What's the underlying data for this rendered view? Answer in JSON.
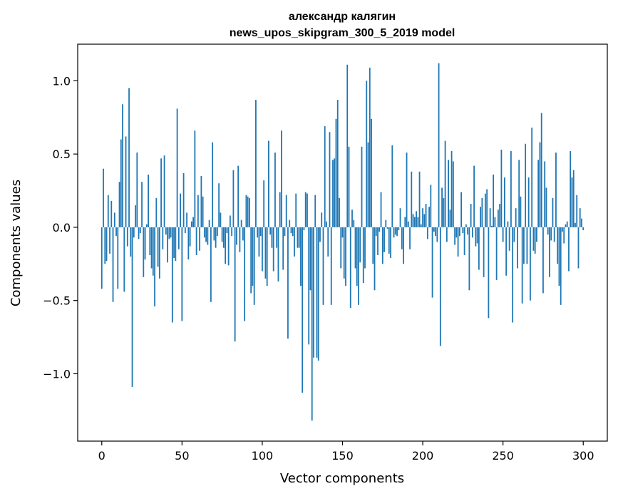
{
  "chart_data": {
    "type": "bar",
    "title_line1": "александр калягин",
    "title_line2": "news_upos_skipgram_300_5_2019 model",
    "xlabel": "Vector components",
    "ylabel": "Components values",
    "xlim": [
      -15,
      315
    ],
    "ylim": [
      -1.46,
      1.25
    ],
    "xticks": [
      0,
      50,
      100,
      150,
      200,
      250,
      300
    ],
    "xtick_labels": [
      "0",
      "50",
      "100",
      "150",
      "200",
      "250",
      "300"
    ],
    "yticks": [
      -1.0,
      -0.5,
      0.0,
      0.5,
      1.0
    ],
    "ytick_labels": [
      "−1.0",
      "−0.5",
      "0.0",
      "0.5",
      "1.0"
    ],
    "bar_color": "#1f77b4",
    "grid": false,
    "values": [
      -0.42,
      0.4,
      -0.25,
      -0.23,
      0.22,
      -0.18,
      0.18,
      -0.51,
      0.1,
      -0.06,
      -0.42,
      0.31,
      0.6,
      0.84,
      -0.44,
      0.62,
      -0.13,
      0.95,
      -0.2,
      -1.09,
      -0.07,
      0.15,
      0.51,
      -0.08,
      -0.04,
      0.31,
      -0.34,
      -0.22,
      0.02,
      0.36,
      -0.19,
      -0.28,
      -0.33,
      -0.54,
      0.2,
      -0.27,
      -0.35,
      0.47,
      -0.15,
      0.49,
      -0.05,
      -0.24,
      -0.08,
      -0.07,
      -0.65,
      -0.21,
      -0.23,
      0.81,
      -0.15,
      0.23,
      -0.64,
      0.37,
      -0.04,
      0.1,
      -0.22,
      -0.13,
      0.04,
      0.07,
      0.66,
      -0.19,
      0.22,
      -0.16,
      0.35,
      0.21,
      -0.07,
      -0.1,
      -0.12,
      0.05,
      -0.51,
      0.58,
      -0.09,
      -0.14,
      -0.06,
      0.3,
      0.1,
      -0.1,
      -0.14,
      -0.25,
      -0.04,
      -0.26,
      0.08,
      -0.06,
      0.39,
      -0.78,
      -0.12,
      0.42,
      -0.17,
      0.05,
      -0.09,
      -0.64,
      0.22,
      0.21,
      0.2,
      -0.45,
      -0.4,
      -0.53,
      0.87,
      -0.07,
      -0.2,
      -0.06,
      -0.3,
      0.32,
      -0.35,
      -0.4,
      0.59,
      -0.05,
      -0.14,
      -0.3,
      0.51,
      -0.14,
      -0.37,
      0.24,
      0.66,
      -0.29,
      -0.06,
      0.22,
      -0.76,
      0.05,
      -0.04,
      -0.06,
      -0.2,
      0.23,
      -0.14,
      -0.14,
      -0.4,
      -1.13,
      -0.02,
      0.24,
      0.23,
      -0.8,
      -0.43,
      -1.32,
      -0.89,
      0.22,
      -0.89,
      -0.91,
      -0.1,
      0.1,
      -0.53,
      0.69,
      0.04,
      -0.2,
      0.65,
      -0.53,
      0.46,
      0.47,
      0.74,
      0.87,
      0.2,
      -0.28,
      -0.07,
      -0.35,
      -0.4,
      1.11,
      0.55,
      -0.55,
      0.12,
      0.05,
      -0.28,
      -0.4,
      -0.53,
      -0.24,
      0.55,
      -0.38,
      -0.28,
      1.0,
      0.58,
      1.09,
      0.74,
      -0.25,
      -0.43,
      -0.06,
      -0.19,
      -0.03,
      0.24,
      -0.25,
      -0.17,
      0.05,
      -0.01,
      -0.18,
      -0.21,
      0.56,
      -0.07,
      -0.05,
      -0.06,
      -0.02,
      0.13,
      -0.15,
      -0.25,
      0.07,
      0.51,
      0.04,
      -0.15,
      0.38,
      0.09,
      0.07,
      0.11,
      0.07,
      0.38,
      0.02,
      0.13,
      0.09,
      0.16,
      -0.08,
      0.14,
      0.29,
      -0.48,
      -0.03,
      -0.06,
      -0.1,
      1.12,
      -0.81,
      0.27,
      0.2,
      0.59,
      -0.1,
      0.46,
      0.12,
      0.52,
      0.45,
      -0.12,
      -0.07,
      -0.2,
      -0.06,
      0.24,
      -0.04,
      -0.19,
      0.02,
      -0.05,
      -0.43,
      0.16,
      -0.07,
      0.42,
      -0.13,
      -0.11,
      -0.29,
      0.14,
      0.2,
      -0.34,
      0.23,
      0.26,
      -0.62,
      0.13,
      0.01,
      0.36,
      0.07,
      -0.36,
      0.12,
      0.16,
      0.53,
      -0.1,
      0.34,
      -0.33,
      0.04,
      -0.16,
      0.52,
      -0.65,
      -0.1,
      0.13,
      -0.28,
      0.46,
      0.21,
      -0.52,
      -0.25,
      0.57,
      -0.25,
      0.34,
      -0.5,
      0.68,
      -0.16,
      -0.18,
      -0.1,
      0.46,
      0.58,
      0.78,
      -0.45,
      0.45,
      0.27,
      -0.05,
      -0.34,
      -0.09,
      0.2,
      -0.1,
      0.51,
      -0.25,
      -0.4,
      -0.53,
      -0.03,
      -0.11,
      0.02,
      0.04,
      -0.3,
      0.52,
      0.34,
      0.39,
      0.03,
      0.22,
      -0.28,
      0.13,
      0.06,
      -0.02
    ]
  }
}
